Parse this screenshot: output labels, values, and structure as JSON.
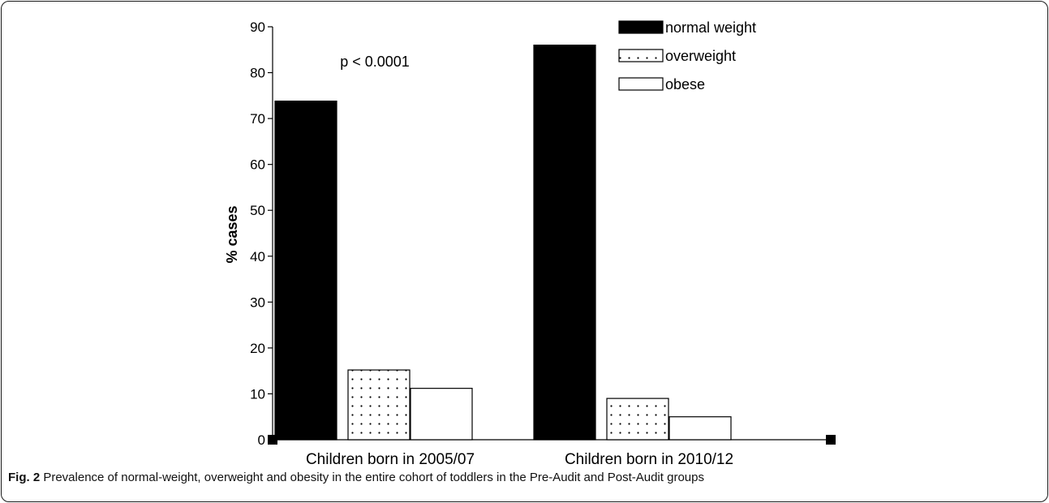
{
  "chart_data": {
    "type": "bar",
    "categories": [
      "Children born in 2005/07",
      "Children born in 2010/12"
    ],
    "series": [
      {
        "name": "normal weight",
        "values": [
          73.8,
          86.0
        ],
        "fill": "solid",
        "color": "#000000"
      },
      {
        "name": "overweight",
        "values": [
          15.2,
          9.0
        ],
        "fill": "dotted",
        "color": "#000000"
      },
      {
        "name": "obese",
        "values": [
          11.2,
          5.0
        ],
        "fill": "empty",
        "color": "#000000"
      }
    ],
    "ylabel": "% cases",
    "xlabel": "",
    "ylim": [
      0,
      90
    ],
    "yticks": [
      0,
      10,
      20,
      30,
      40,
      50,
      60,
      70,
      80,
      90
    ],
    "annotation": "p < 0.0001",
    "legend_position": "top-right",
    "grid": false
  },
  "caption": {
    "label": "Fig. 2",
    "text": "Prevalence of normal-weight, overweight and obesity in the entire cohort of toddlers in the Pre-Audit and Post-Audit groups"
  }
}
